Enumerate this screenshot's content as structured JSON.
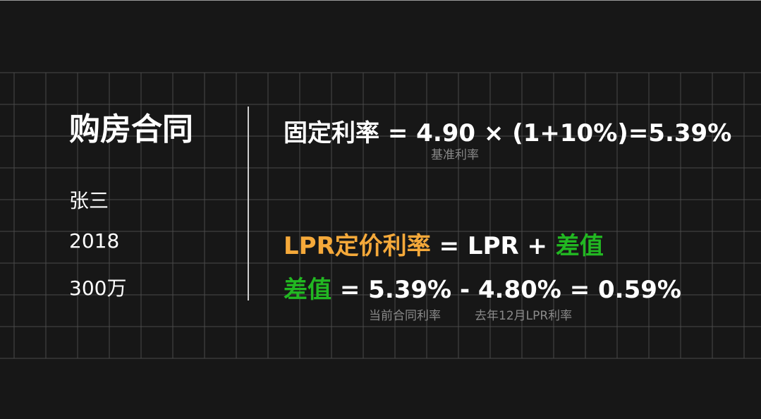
{
  "left": {
    "title": "购房合同",
    "name": "张三",
    "year": "2018",
    "amount": "300万"
  },
  "formulas": {
    "fixed": {
      "text": "固定利率 = 4.90 × (1+10%)=5.39%",
      "note": "基准利率"
    },
    "lpr": {
      "label": "LPR定价利率",
      "rest": " = LPR + ",
      "diff": "差值"
    },
    "diff": {
      "label": "差值",
      "rest": " = 5.39% - 4.80% = 0.59%",
      "note1": "当前合同利率",
      "note2": "去年12月LPR利率"
    }
  },
  "colors": {
    "background": "#171717",
    "grid": "#4a4a4a",
    "orange": "#f5a93a",
    "green": "#22b822",
    "text": "#ffffff",
    "note": "#8a8a8a"
  }
}
